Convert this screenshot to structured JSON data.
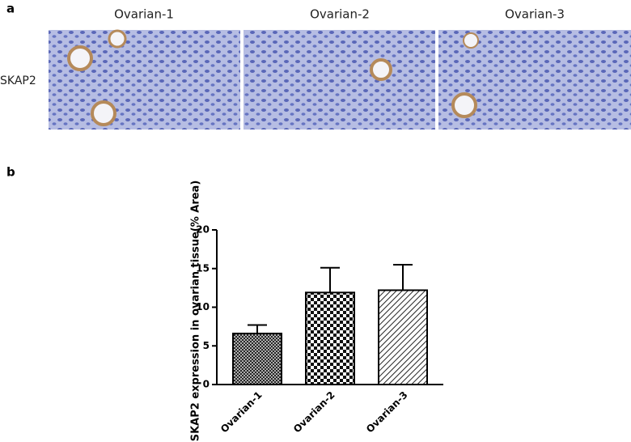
{
  "panel_a": {
    "label": "a",
    "columns": [
      "Ovarian-1",
      "Ovarian-2",
      "Ovarian-3"
    ],
    "row_label": "SKAP2"
  },
  "panel_b": {
    "label": "b"
  },
  "chart_data": {
    "type": "bar",
    "y_label": "SKAP2 expression in ovarian tissue(% Area)",
    "categories": [
      "Ovarian-1",
      "Ovarian-2",
      "Ovarian-3"
    ],
    "values": [
      6.6,
      11.9,
      12.2
    ],
    "errors": [
      1.1,
      3.2,
      3.3
    ],
    "patterns": [
      "crosshatch",
      "checker",
      "diagonal"
    ],
    "ylim": [
      0,
      20
    ],
    "yticks": [
      0,
      5,
      10,
      15,
      20
    ]
  }
}
